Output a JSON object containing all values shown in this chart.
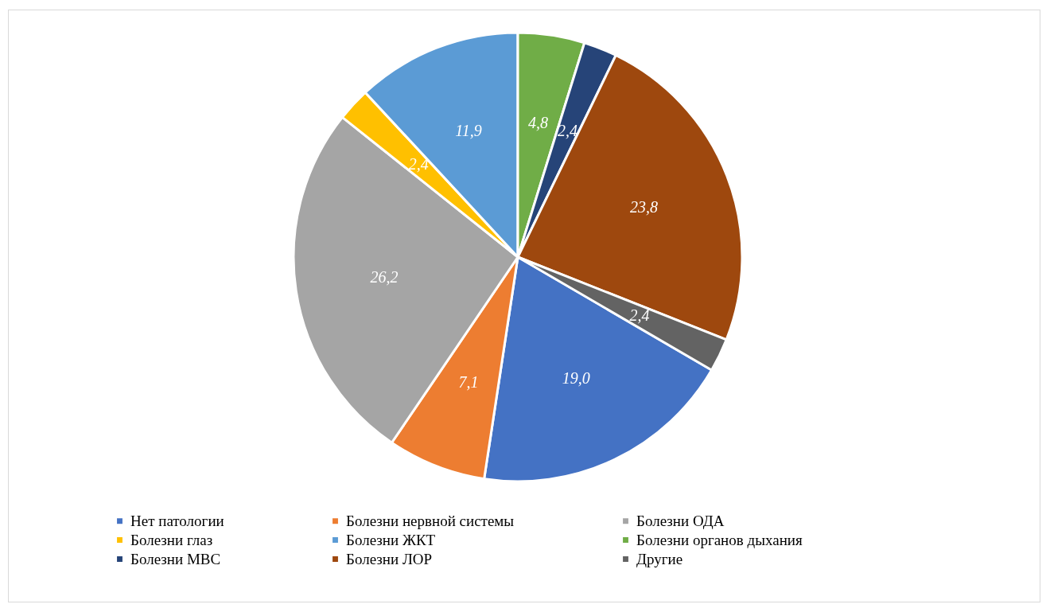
{
  "chart_data": {
    "type": "pie",
    "categories": [
      "Нет патологии",
      "Болезни нервной системы",
      "Болезни ОДА",
      "Болезни глаз",
      "Болезни ЖКТ",
      "Болезни органов дыхания",
      "Болезни МВС",
      "Болезни ЛОР",
      "Другие"
    ],
    "values": [
      19.0,
      7.1,
      26.2,
      2.4,
      11.9,
      4.8,
      2.4,
      23.8,
      2.4
    ],
    "colors": [
      "#4472c4",
      "#ed7d31",
      "#a5a5a5",
      "#ffc000",
      "#5b9bd5",
      "#70ad47",
      "#264478",
      "#9e480e",
      "#636363"
    ],
    "value_labels": [
      "19,0",
      "7,1",
      "26,2",
      "2,4",
      "11,9",
      "4,8",
      "2,4",
      "23,8",
      "2,4"
    ],
    "legend": "bottom"
  }
}
